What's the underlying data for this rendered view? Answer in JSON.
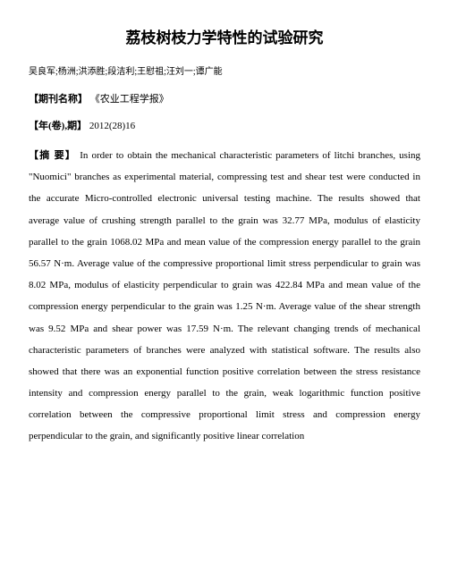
{
  "title": "荔枝树枝力学特性的试验研究",
  "authors": "吴良军;杨洲;洪添胜;段洁利;王慰祖;汪刘一;谭广能",
  "journal_label": "【期刊名称】",
  "journal_value": "《农业工程学报》",
  "year_label": "【年(卷),期】",
  "year_value": "2012(28)16",
  "abstract_label": "【摘 要】",
  "abstract_text": "In order to obtain the mechanical characteristic parameters of litchi branches, using \"Nuomici\" branches as experimental material, compressing test and shear test were conducted in the accurate Micro-controlled electronic universal testing machine. The results showed that average value of crushing strength parallel to the grain was 32.77 MPa, modulus of elasticity parallel to the grain 1068.02 MPa and mean value of the compression energy parallel to the grain 56.57 N·m. Average value of the compressive proportional limit stress perpendicular to grain was 8.02 MPa, modulus of elasticity perpendicular to grain was 422.84 MPa and mean value of the compression energy perpendicular to the grain was 1.25 N·m. Average value of the shear strength was 9.52 MPa and shear power was 17.59 N·m. The relevant changing trends of mechanical characteristic parameters of branches were analyzed with statistical software. The results also showed that there was an exponential function positive correlation between the stress resistance intensity and compression energy parallel to the grain, weak logarithmic function positive correlation between the compressive proportional limit stress and compression energy perpendicular to the grain, and significantly positive linear correlation"
}
